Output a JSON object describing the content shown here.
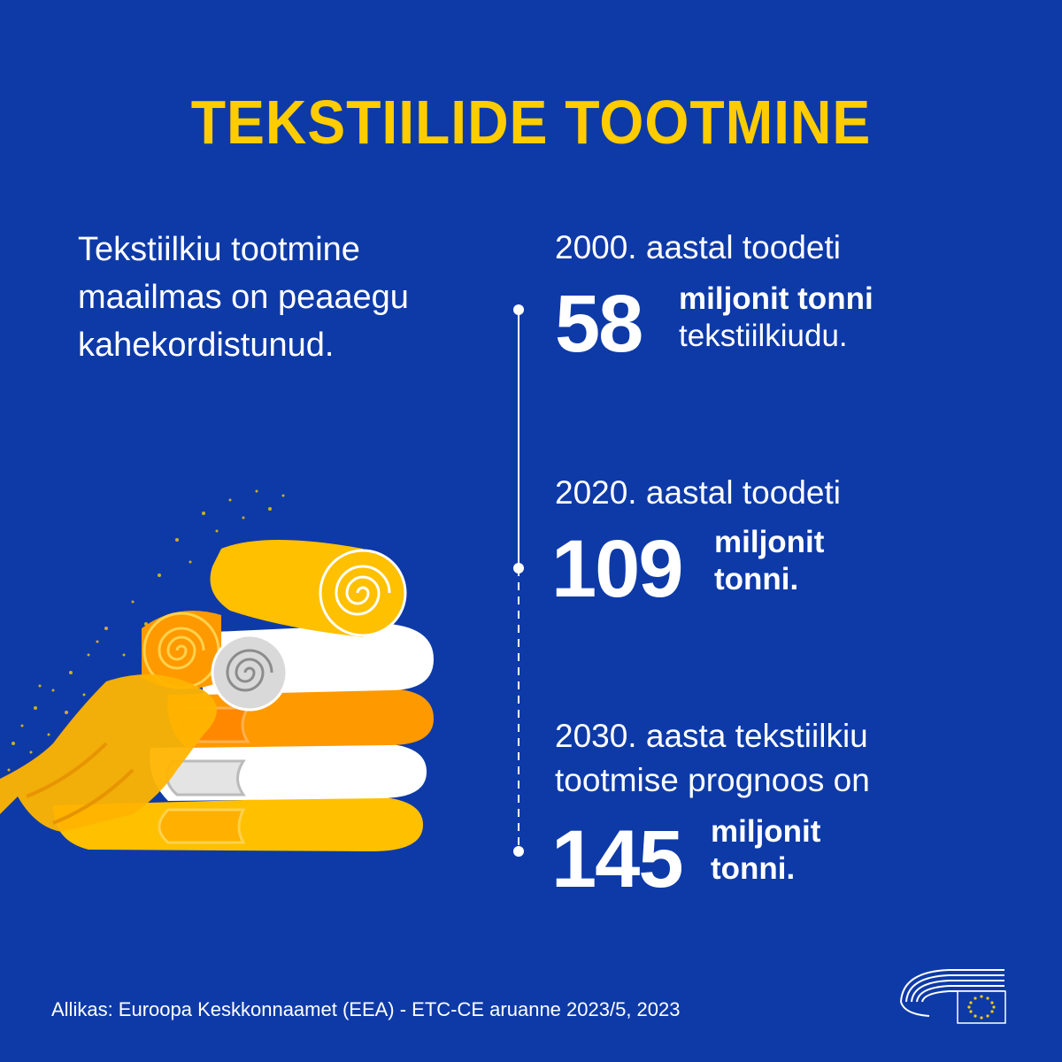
{
  "title": "TEKSTIILIDE TOOTMINE",
  "intro": [
    "Tekstiilkiu tootmine",
    "maailmas on peaaegu",
    "kahekordistunud."
  ],
  "entries": [
    {
      "lead": [
        "2000. aastal toodeti"
      ],
      "number": "58",
      "unit_bold": "miljonit tonni",
      "unit_plain": "tekstiilkiudu."
    },
    {
      "lead": [
        "2020. aastal toodeti"
      ],
      "number": "109",
      "unit_bold": "miljonit",
      "unit_plain": "tonni."
    },
    {
      "lead": [
        "2030. aasta tekstiilkiu",
        "tootmise prognoos on"
      ],
      "number": "145",
      "unit_bold": "miljonit",
      "unit_plain": "tonni."
    }
  ],
  "source": "Allikas: Euroopa Keskkonnaamet (EEA) - ETC-CE aruanne 2023/5, 2023",
  "colors": {
    "background": "#0e3aa8",
    "accent": "#ffcc00",
    "orange": "#ff9900",
    "text": "#ffffff"
  },
  "icons": [
    "folded-textiles-illustration",
    "european-parliament-logo"
  ]
}
